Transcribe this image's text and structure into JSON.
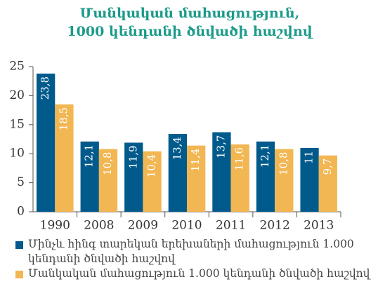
{
  "chart_data": {
    "type": "bar",
    "title": [
      "Մանկական մահացություն,",
      "1000 կենդանի ծնվածի հաշվով"
    ],
    "categories": [
      "1990",
      "2008",
      "2009",
      "2010",
      "2011",
      "2012",
      "2013"
    ],
    "series": [
      {
        "name": "Մինչև հինգ տարեկան երեխաների մահացություն 1.000 կենդանի ծնվածի հաշվով",
        "color": "#005a8c",
        "values": [
          23.8,
          12.1,
          11.9,
          13.4,
          13.7,
          12.1,
          11
        ],
        "value_labels": [
          "23,8",
          "12,1",
          "11,9",
          "13,4",
          "13,7",
          "12,1",
          "11"
        ]
      },
      {
        "name": "Մանկական մահացություն 1.000 կենդանի ծնվածի հաշվով",
        "color": "#f2b652",
        "values": [
          18.5,
          10.8,
          10.4,
          11.4,
          11.6,
          10.8,
          9.7
        ],
        "value_labels": [
          "18,5",
          "10,8",
          "10,4",
          "11,4",
          "11,6",
          "10,8",
          "9,7"
        ]
      }
    ],
    "ylim": [
      0,
      25
    ],
    "yticks": [
      0,
      5,
      10,
      15,
      20,
      25
    ]
  }
}
